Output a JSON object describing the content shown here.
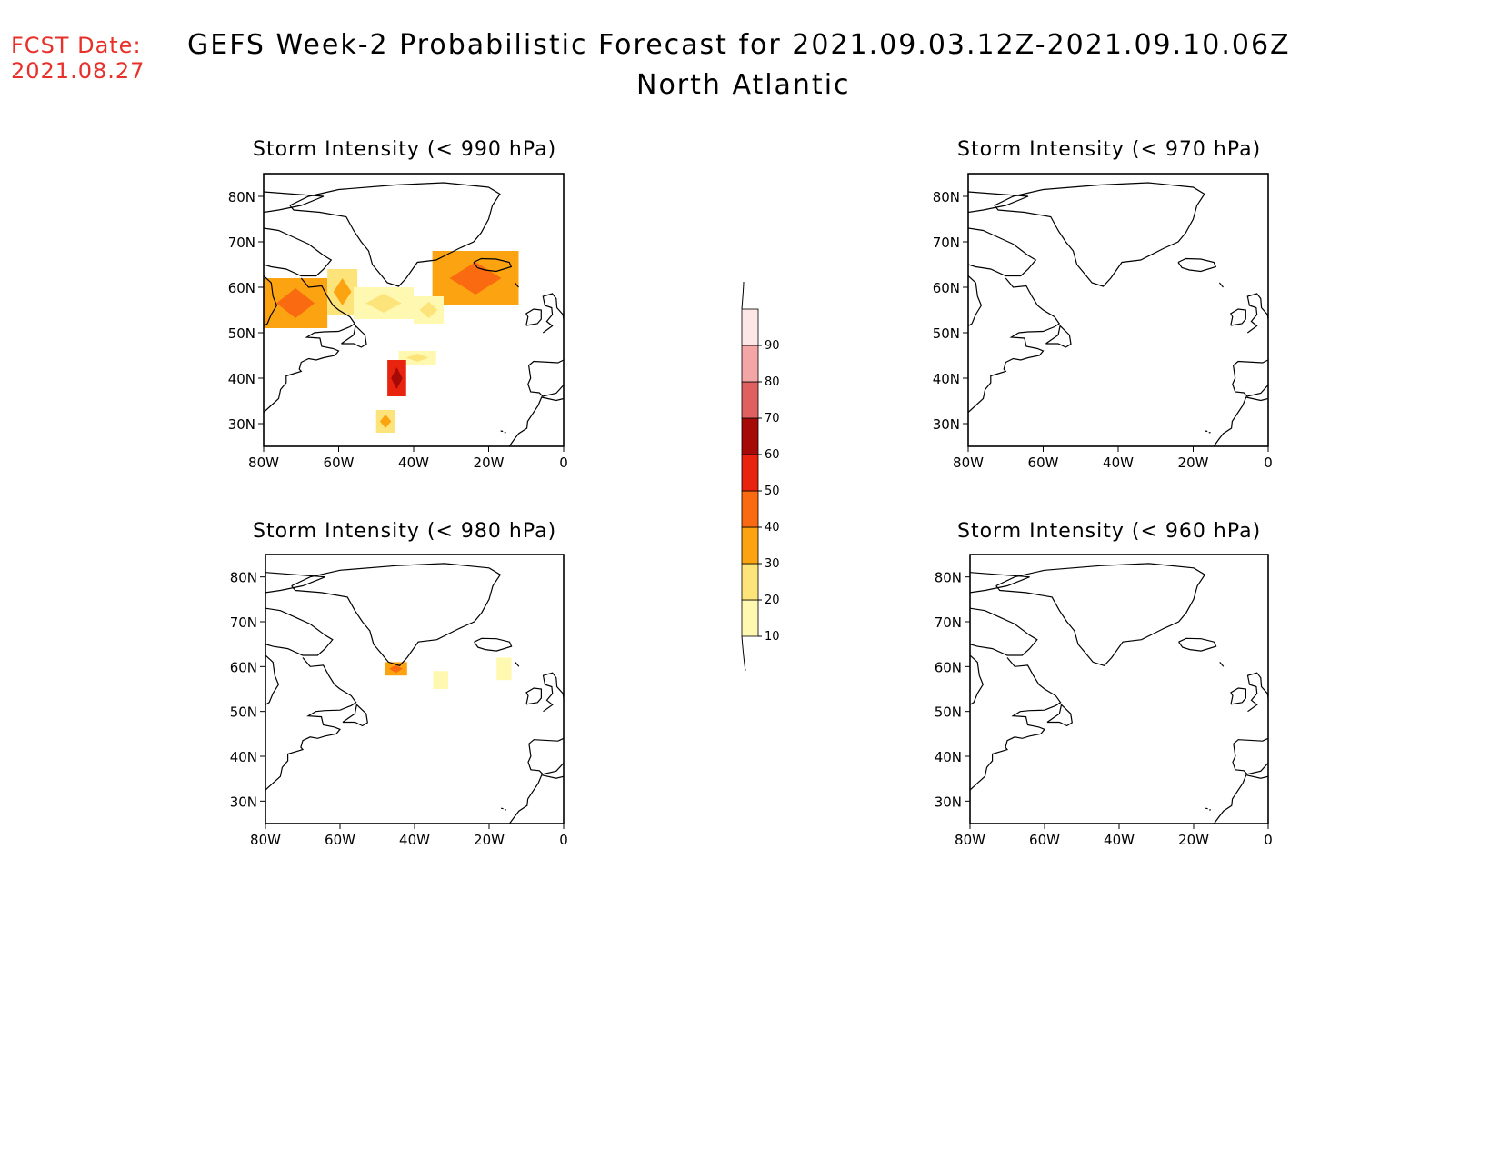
{
  "forecast_date": {
    "label": "FCST Date:",
    "value": "2021.08.27"
  },
  "title": {
    "line1": "GEFS Week-2 Probabilistic Forecast for 2021.09.03.12Z-2021.09.10.06Z",
    "line2": "North Atlantic"
  },
  "axes": {
    "lon_labels": [
      "80W",
      "60W",
      "40W",
      "20W",
      "0"
    ],
    "lat_labels": [
      "30N",
      "40N",
      "50N",
      "60N",
      "70N",
      "80N"
    ]
  },
  "panels": [
    {
      "id": "p990",
      "title": "Storm Intensity (< 990 hPa)"
    },
    {
      "id": "p970",
      "title": "Storm Intensity (< 970 hPa)"
    },
    {
      "id": "p980",
      "title": "Storm Intensity (< 980 hPa)"
    },
    {
      "id": "p960",
      "title": "Storm Intensity (< 960 hPa)"
    }
  ],
  "colorbar": {
    "levels": [
      "10",
      "20",
      "30",
      "40",
      "50",
      "60",
      "70",
      "80",
      "90"
    ],
    "colors": [
      "#fff8b0",
      "#fde47a",
      "#fca311",
      "#fa6a10",
      "#e8230e",
      "#a50a07",
      "#de6060",
      "#f4a6a6",
      "#fde6e6"
    ]
  },
  "probability_areas": {
    "p990": [
      {
        "lon": [
          -80,
          -63
        ],
        "lat": [
          51,
          62
        ],
        "level": 40
      },
      {
        "lon": [
          -63,
          -55
        ],
        "lat": [
          54,
          64
        ],
        "level": 30
      },
      {
        "lon": [
          -56,
          -40
        ],
        "lat": [
          53,
          60
        ],
        "level": 20
      },
      {
        "lon": [
          -35,
          -12
        ],
        "lat": [
          56,
          68
        ],
        "level": 40
      },
      {
        "lon": [
          -40,
          -32
        ],
        "lat": [
          52,
          58
        ],
        "level": 20
      },
      {
        "lon": [
          -44,
          -34
        ],
        "lat": [
          43,
          46
        ],
        "level": 20
      },
      {
        "lon": [
          -47,
          -42
        ],
        "lat": [
          36,
          44
        ],
        "level": 60
      },
      {
        "lon": [
          -50,
          -45
        ],
        "lat": [
          28,
          33
        ],
        "level": 30
      }
    ],
    "p980": [
      {
        "lon": [
          -48,
          -42
        ],
        "lat": [
          58,
          61
        ],
        "level": 40
      },
      {
        "lon": [
          -35,
          -31
        ],
        "lat": [
          55,
          59
        ],
        "level": 10
      },
      {
        "lon": [
          -18,
          -14
        ],
        "lat": [
          57,
          62
        ],
        "level": 10
      }
    ],
    "p970": [],
    "p960": []
  }
}
